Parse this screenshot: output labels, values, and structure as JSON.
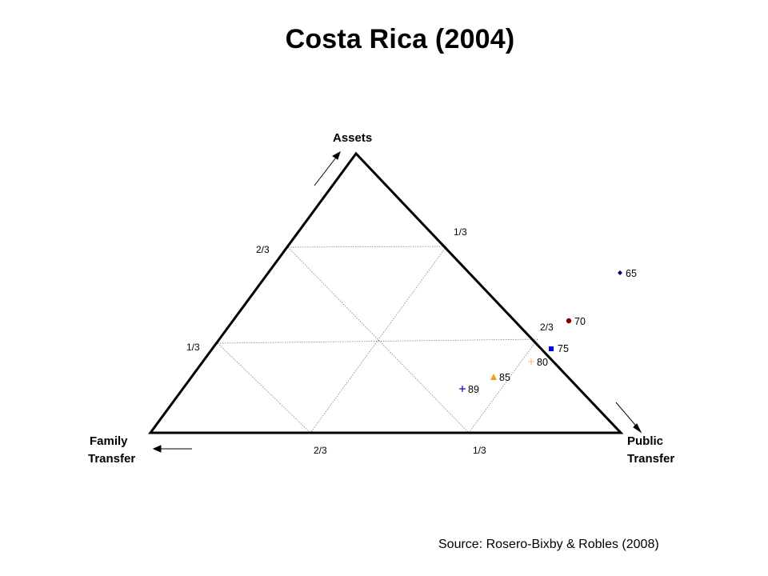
{
  "title": "Costa Rica (2004)",
  "source": "Source: Rosero-Bixby  & Robles (2008)",
  "vertices": {
    "top": "Assets",
    "left": [
      "Family",
      "Transfer"
    ],
    "right": [
      "Public",
      "Transfer"
    ]
  },
  "ticks": {
    "assets_axis": [
      "2/3",
      "1/3"
    ],
    "public_axis": [
      "1/3",
      "2/3"
    ],
    "family_axis": [
      "2/3",
      "1/3"
    ]
  },
  "colors": {
    "line": "#000000",
    "grid": "#808080",
    "age_65": "#000080",
    "age_70": "#800000",
    "age_75": "#0000ff",
    "age_80": "#ffc890",
    "age_85": "#f0a020",
    "age_89": "#0000cc"
  },
  "points": [
    {
      "age": "65",
      "marker": "diamond",
      "color_key": "age_65"
    },
    {
      "age": "70",
      "marker": "circle",
      "color_key": "age_70"
    },
    {
      "age": "75",
      "marker": "square",
      "color_key": "age_75"
    },
    {
      "age": "80",
      "marker": "plus",
      "color_key": "age_80"
    },
    {
      "age": "85",
      "marker": "triangle",
      "color_key": "age_85"
    },
    {
      "age": "89",
      "marker": "plus",
      "color_key": "age_89"
    }
  ]
}
